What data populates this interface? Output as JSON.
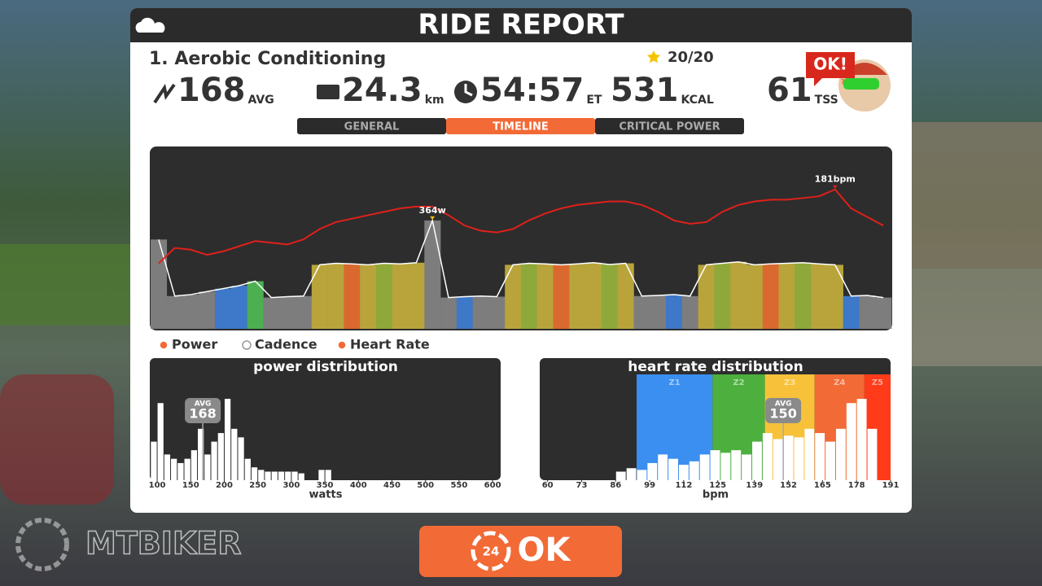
{
  "header": {
    "title": "RIDE REPORT"
  },
  "workout": {
    "name": "1. Aerobic Conditioning",
    "stars": "20/20"
  },
  "stats": [
    {
      "value": "168",
      "unit": "AVG"
    },
    {
      "value": "24.3",
      "unit": "km"
    },
    {
      "value": "54:57",
      "unit": "ET"
    },
    {
      "value": "531",
      "unit": "KCAL"
    },
    {
      "value": "61",
      "unit": "TSS",
      "info": "?"
    }
  ],
  "badge": "OK!",
  "tabs": [
    "GENERAL",
    "TIMELINE",
    "CRITICAL POWER"
  ],
  "active_tab": 1,
  "timeline": {
    "type": "line",
    "ylim": [
      0,
      607
    ],
    "y2lim": [
      100,
      205
    ],
    "power": {
      "name": "Power",
      "color": "#ffffff",
      "values": [
        300,
        110,
        115,
        125,
        135,
        145,
        160,
        105,
        108,
        110,
        215,
        220,
        218,
        215,
        220,
        218,
        222,
        364,
        105,
        108,
        110,
        108,
        215,
        220,
        218,
        215,
        218,
        222,
        216,
        220,
        110,
        112,
        115,
        110,
        215,
        220,
        225,
        215,
        218,
        220,
        222,
        218,
        215,
        110,
        112,
        105
      ],
      "colors": [
        "#7d7d7d",
        "#7d7d7d",
        "#7d7d7d",
        "#7d7d7d",
        "#3d78c9",
        "#3d78c9",
        "#4caf50",
        "#7d7d7d",
        "#7d7d7d",
        "#7d7d7d",
        "#b8a43a",
        "#b8a43a",
        "#d9692f",
        "#b8a43a",
        "#8fa83a",
        "#b8a43a",
        "#b8a43a",
        "#7d7d7d",
        "#7d7d7d",
        "#3d78c9",
        "#7d7d7d",
        "#7d7d7d",
        "#b8a43a",
        "#8fa83a",
        "#b8a43a",
        "#d9692f",
        "#b8a43a",
        "#b8a43a",
        "#8fa83a",
        "#b8a43a",
        "#7d7d7d",
        "#7d7d7d",
        "#3d78c9",
        "#7d7d7d",
        "#b8a43a",
        "#8fa83a",
        "#b8a43a",
        "#b8a43a",
        "#d9692f",
        "#b8a43a",
        "#8fa83a",
        "#b8a43a",
        "#b8a43a",
        "#3d78c9",
        "#7d7d7d",
        "#7d7d7d"
      ],
      "value_labels": [
        null,
        null,
        null,
        null,
        null,
        null,
        null,
        null,
        null,
        null,
        null,
        null,
        null,
        null,
        null,
        null,
        null,
        "364w",
        null,
        null,
        null,
        null,
        null,
        null,
        null,
        null,
        null,
        null,
        null,
        null,
        null,
        null,
        null,
        null,
        null,
        null,
        null,
        null,
        null,
        null,
        null,
        null,
        null,
        null,
        null,
        null
      ]
    },
    "heart_rate": {
      "name": "Heart Rate",
      "color": "#e0201a",
      "axis": "y2",
      "values": [
        138,
        147,
        146,
        143,
        145,
        148,
        151,
        150,
        149,
        152,
        158,
        162,
        164,
        166,
        168,
        170,
        171,
        171,
        166,
        160,
        157,
        156,
        158,
        163,
        167,
        170,
        172,
        173,
        174,
        174,
        172,
        168,
        163,
        161,
        162,
        168,
        172,
        174,
        175,
        175,
        176,
        177,
        181,
        170,
        165,
        160
      ],
      "value_labels": [
        null,
        null,
        null,
        null,
        null,
        null,
        null,
        null,
        null,
        null,
        null,
        null,
        null,
        null,
        null,
        null,
        null,
        null,
        null,
        null,
        null,
        null,
        null,
        null,
        null,
        null,
        null,
        null,
        null,
        null,
        null,
        null,
        null,
        null,
        null,
        null,
        null,
        null,
        null,
        null,
        null,
        null,
        "181bpm",
        null,
        null,
        null
      ]
    }
  },
  "legend": [
    {
      "name": "Power",
      "on": true
    },
    {
      "name": "Cadence",
      "on": false
    },
    {
      "name": "Heart Rate",
      "on": true
    }
  ],
  "power_distribution": {
    "type": "histogram",
    "title": "power distribution",
    "x_label": "watts",
    "bins": [
      90,
      100,
      110,
      120,
      130,
      140,
      150,
      160,
      170,
      180,
      190,
      200,
      210,
      220,
      230,
      240,
      250,
      260,
      270,
      280,
      290,
      300,
      310,
      320,
      330,
      340,
      350,
      360
    ],
    "values": [
      45,
      90,
      30,
      25,
      20,
      25,
      35,
      60,
      30,
      45,
      55,
      95,
      60,
      50,
      25,
      15,
      12,
      10,
      10,
      10,
      10,
      10,
      8,
      0,
      0,
      12,
      12
    ],
    "color": "#ffffff",
    "xlim": [
      89,
      612
    ],
    "xticks": [
      100,
      150,
      200,
      250,
      300,
      350,
      400,
      450,
      500,
      550,
      600
    ],
    "avg": {
      "label": "AVG",
      "value": 168
    }
  },
  "heart_rate_distribution": {
    "type": "histogram",
    "title": "heart rate distribution",
    "x_label": "bpm",
    "bins": [
      86,
      90,
      94,
      98,
      102,
      106,
      110,
      114,
      118,
      122,
      126,
      130,
      134,
      138,
      142,
      146,
      150,
      154,
      158,
      162,
      166,
      170,
      174,
      178,
      182,
      186
    ],
    "values": [
      10,
      14,
      12,
      20,
      30,
      25,
      18,
      22,
      30,
      35,
      32,
      35,
      30,
      45,
      55,
      48,
      52,
      50,
      60,
      55,
      45,
      60,
      90,
      95,
      60
    ],
    "color": "#ffffff",
    "xlim": [
      57,
      191
    ],
    "xticks": [
      60,
      73,
      86,
      99,
      112,
      125,
      139,
      152,
      165,
      178,
      191
    ],
    "zones": [
      {
        "name": "Z1",
        "color": "#3a8ff0",
        "from": 94,
        "to": 123
      },
      {
        "name": "Z2",
        "color": "#4caf3e",
        "from": 123,
        "to": 143
      },
      {
        "name": "Z3",
        "color": "#f7c23a",
        "from": 143,
        "to": 162
      },
      {
        "name": "Z4",
        "color": "#f26a36",
        "from": 162,
        "to": 181
      },
      {
        "name": "Z5",
        "color": "#ff3b1a",
        "from": 181,
        "to": 191
      }
    ],
    "avg": {
      "label": "AVG",
      "value": 150
    }
  },
  "button": {
    "badge": "24",
    "label": "OK"
  },
  "watermark": "MTBIKER"
}
